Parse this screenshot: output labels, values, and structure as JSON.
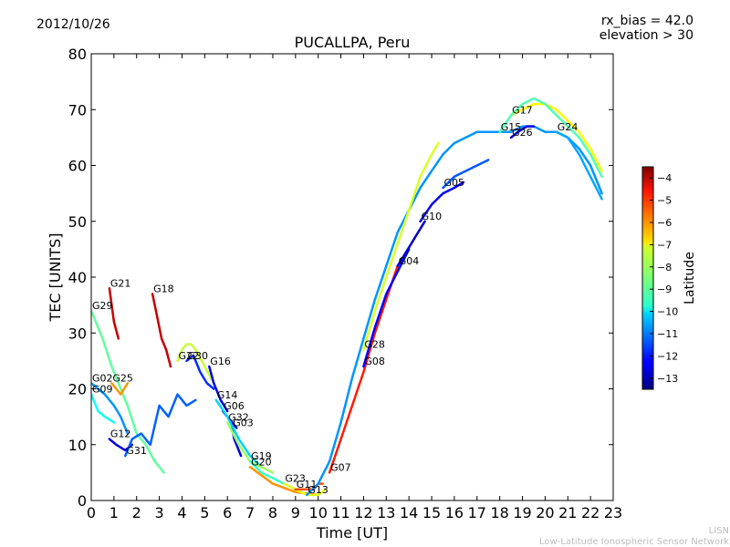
{
  "header": {
    "date": "2012/10/26",
    "bias": "rx_bias = 42.0",
    "elevation": "elevation > 30"
  },
  "footer": {
    "line1": "LISN",
    "line2": "Low-Latitude Ionospheric Sensor Network"
  },
  "chart_data": {
    "type": "line",
    "title": "PUCALLPA, Peru",
    "xlabel": "Time [UT]",
    "ylabel": "TEC [UNITS]",
    "xlim": [
      0,
      23
    ],
    "ylim": [
      0,
      80
    ],
    "xticks": [
      0,
      1,
      2,
      3,
      4,
      5,
      6,
      7,
      8,
      9,
      10,
      11,
      12,
      13,
      14,
      15,
      16,
      17,
      18,
      19,
      20,
      21,
      22,
      23
    ],
    "yticks": [
      0,
      10,
      20,
      30,
      40,
      50,
      60,
      70,
      80
    ],
    "colorbar": {
      "label": "Latitude",
      "range": [
        -13.5,
        -3.5
      ],
      "ticks": [
        -4,
        -5,
        -6,
        -7,
        -8,
        -9,
        -10,
        -11,
        -12,
        -13
      ]
    },
    "series": [
      {
        "name": "G29",
        "lat": -8.8,
        "x": [
          0.0,
          0.5,
          0.9,
          1.3,
          1.6,
          2.0,
          2.4,
          2.8,
          3.2
        ],
        "y": [
          34,
          29,
          24,
          20,
          17,
          12,
          10,
          7,
          5
        ]
      },
      {
        "name": "G09",
        "lat": -9.6,
        "x": [
          0.0,
          0.3,
          0.6,
          1.0
        ],
        "y": [
          19,
          16,
          15,
          14
        ]
      },
      {
        "name": "G02",
        "lat": -10.8,
        "x": [
          0.0,
          0.3,
          0.6,
          1.0,
          1.3,
          1.6
        ],
        "y": [
          21,
          20,
          19,
          17,
          15,
          12
        ]
      },
      {
        "name": "G21",
        "lat": -4.2,
        "x": [
          0.8,
          0.9,
          1.0,
          1.2
        ],
        "y": [
          38,
          35,
          32,
          29
        ]
      },
      {
        "name": "G25",
        "lat": -6.2,
        "x": [
          0.9,
          1.1,
          1.3,
          1.6
        ],
        "y": [
          21,
          20,
          19,
          21
        ]
      },
      {
        "name": "G12",
        "lat": -12.6,
        "x": [
          0.8,
          1.1,
          1.5,
          1.8
        ],
        "y": [
          11,
          10,
          9,
          10
        ]
      },
      {
        "name": "G31",
        "lat": -11.3,
        "x": [
          1.5,
          1.8,
          2.2,
          2.6,
          3.0,
          3.4,
          3.8,
          4.2,
          4.6
        ],
        "y": [
          8,
          11,
          12,
          10,
          17,
          15,
          19,
          17,
          18
        ]
      },
      {
        "name": "G18",
        "lat": -4.2,
        "x": [
          2.7,
          2.9,
          3.1,
          3.3,
          3.5
        ],
        "y": [
          37,
          33,
          29,
          27,
          24
        ]
      },
      {
        "name": "G22",
        "lat": -7.8,
        "x": [
          3.8,
          4.0,
          4.2,
          4.4,
          4.6,
          5.0,
          5.4
        ],
        "y": [
          25,
          27,
          28,
          28,
          27,
          24,
          21
        ]
      },
      {
        "name": "G30",
        "lat": -11.8,
        "x": [
          4.2,
          4.5,
          4.8,
          5.1,
          5.4
        ],
        "y": [
          25,
          26,
          23,
          21,
          20
        ]
      },
      {
        "name": "G16",
        "lat": -12.4,
        "x": [
          5.2,
          5.4,
          5.7,
          6.0
        ],
        "y": [
          24,
          21,
          18,
          16
        ]
      },
      {
        "name": "G06",
        "lat": -12.8,
        "x": [
          5.8,
          6.0,
          6.2,
          6.4
        ],
        "y": [
          16,
          15,
          14,
          13
        ]
      },
      {
        "name": "G03",
        "lat": -12.6,
        "x": [
          6.2,
          6.3,
          6.4,
          6.6
        ],
        "y": [
          13,
          11,
          10,
          8
        ]
      },
      {
        "name": "G14",
        "lat": -10.2,
        "x": [
          5.5,
          6.0,
          6.5,
          7.0,
          7.5
        ],
        "y": [
          18,
          15,
          11,
          8,
          6
        ]
      },
      {
        "name": "G32",
        "lat": -8.2,
        "x": [
          6.0,
          6.5,
          7.0,
          7.5,
          8.0
        ],
        "y": [
          14,
          10,
          7,
          6,
          5
        ]
      },
      {
        "name": "G19",
        "lat": -9.2,
        "x": [
          7.0,
          7.5,
          8.0,
          8.5,
          9.0
        ],
        "y": [
          7,
          5,
          4,
          3,
          2
        ]
      },
      {
        "name": "G20",
        "lat": -6.2,
        "x": [
          7.0,
          8.0,
          9.0,
          10.0
        ],
        "y": [
          6,
          3,
          1.5,
          1
        ]
      },
      {
        "name": "G23",
        "lat": -7.5,
        "x": [
          8.5,
          9.0,
          9.5,
          10.0,
          10.3
        ],
        "y": [
          3,
          2,
          1,
          1,
          2
        ]
      },
      {
        "name": "G11",
        "lat": -5.5,
        "x": [
          9.0,
          9.5,
          9.8,
          10.0,
          10.2
        ],
        "y": [
          2,
          2,
          2,
          3,
          3
        ]
      },
      {
        "name": "G13",
        "lat": -10.8,
        "x": [
          9.5,
          10.0,
          10.5,
          11.0,
          11.5,
          12.0,
          12.5,
          13.0,
          13.5,
          14.0,
          14.5,
          15.0,
          15.5,
          16.0,
          16.5,
          17.0,
          17.5,
          18.0,
          18.5,
          19.0,
          19.5,
          20.0,
          20.5,
          21.0,
          21.5,
          22.0,
          22.5
        ],
        "y": [
          1,
          3,
          7,
          14,
          22,
          29,
          36,
          42,
          48,
          52,
          56,
          59,
          62,
          64,
          65,
          66,
          66,
          66,
          66,
          67,
          67,
          66,
          66,
          65,
          63,
          60,
          55
        ]
      },
      {
        "name": "G07",
        "lat": -5.0,
        "x": [
          10.5,
          11.0,
          11.5,
          12.0,
          12.5,
          13.0,
          13.5
        ],
        "y": [
          5,
          11,
          17,
          23,
          30,
          36,
          42
        ]
      },
      {
        "name": "G08",
        "lat": -12.2,
        "x": [
          12.0,
          12.5,
          13.0,
          13.5,
          14.0
        ],
        "y": [
          24,
          31,
          37,
          41,
          45
        ]
      },
      {
        "name": "G04",
        "lat": -12.8,
        "x": [
          13.5,
          13.8,
          14.1,
          14.4,
          14.7
        ],
        "y": [
          42,
          44,
          46,
          48,
          50
        ]
      },
      {
        "name": "G10",
        "lat": -12.4,
        "x": [
          14.5,
          15.0,
          15.5,
          16.0,
          16.4
        ],
        "y": [
          50,
          53,
          55,
          56,
          57
        ]
      },
      {
        "name": "G28",
        "lat": -7.6,
        "x": [
          12.0,
          12.5,
          13.0,
          13.5,
          14.0,
          14.5,
          15.0,
          15.3
        ],
        "y": [
          27,
          34,
          40,
          46,
          52,
          58,
          62,
          64
        ]
      },
      {
        "name": "G05",
        "lat": -11.4,
        "x": [
          15.5,
          16.0,
          16.5,
          17.0,
          17.5
        ],
        "y": [
          56,
          58,
          59,
          60,
          61
        ]
      },
      {
        "name": "G26",
        "lat": -12.6,
        "x": [
          18.5,
          18.8,
          19.2,
          19.5
        ],
        "y": [
          65,
          66,
          67,
          67
        ]
      },
      {
        "name": "G17",
        "lat": -7.2,
        "x": [
          18.5,
          19.0,
          19.5,
          20.0,
          20.5,
          21.0,
          21.5,
          22.0,
          22.5
        ],
        "y": [
          69,
          70,
          71,
          71,
          70,
          68,
          66,
          63,
          59
        ]
      },
      {
        "name": "G15",
        "lat": -9.0,
        "x": [
          18.0,
          18.5,
          19.0,
          19.5,
          20.0,
          20.5,
          21.0,
          21.5,
          22.0,
          22.5
        ],
        "y": [
          66,
          69,
          71,
          72,
          71,
          69,
          67,
          65,
          62,
          58
        ]
      },
      {
        "name": "G24",
        "lat": -10.6,
        "x": [
          20.5,
          21.0,
          21.5,
          22.0,
          22.5
        ],
        "y": [
          66,
          65,
          62,
          58,
          54
        ]
      }
    ]
  }
}
